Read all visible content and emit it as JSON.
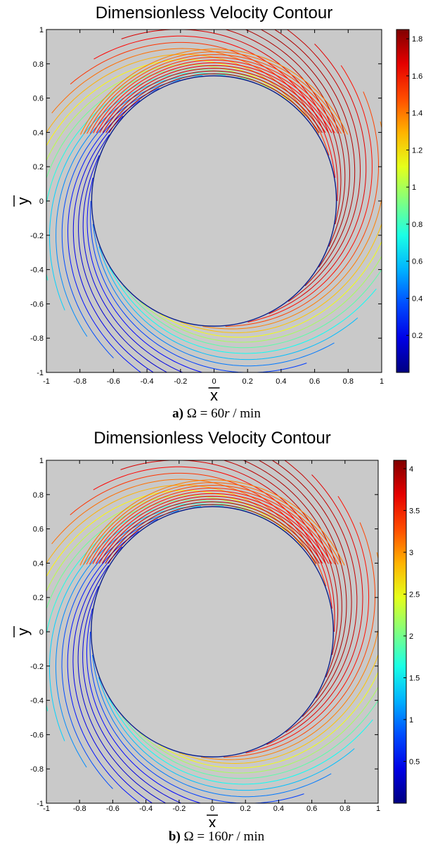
{
  "chart_data": [
    {
      "type": "contour",
      "title": "Dimensionless Velocity Contour",
      "xlabel": "x",
      "ylabel": "y",
      "xlim": [
        -1,
        1
      ],
      "ylim": [
        -1,
        1
      ],
      "xticks": [
        "-1",
        "-0.8",
        "-0.6",
        "-0.4",
        "-0.2",
        "0",
        "0.2",
        "0.4",
        "0.6",
        "0.8",
        "1"
      ],
      "yticks": [
        "-1",
        "-0.8",
        "-0.6",
        "-0.4",
        "-0.2",
        "0",
        "0.2",
        "0.4",
        "0.6",
        "0.8",
        "1"
      ],
      "colorbar": {
        "range": [
          0,
          1.85
        ],
        "ticks": [
          "0.2",
          "0.4",
          "0.6",
          "0.8",
          "1",
          "1.2",
          "1.4",
          "1.6",
          "1.8"
        ]
      },
      "cylinder_radius": 0.73,
      "max_value": 1.85,
      "caption": {
        "letter": "a)",
        "equation": "Ω = 60",
        "var": "r",
        "unit": " / min"
      }
    },
    {
      "type": "contour",
      "title": "Dimensionless Velocity Contour",
      "xlabel": "x",
      "ylabel": "y",
      "xlim": [
        -1,
        1
      ],
      "ylim": [
        -1,
        1
      ],
      "xticks": [
        "-1",
        "-0.8",
        "-0.6",
        "-0.4",
        "-0.2",
        "0",
        "0.2",
        "0.4",
        "0.6",
        "0.8",
        "1"
      ],
      "yticks": [
        "-1",
        "-0.8",
        "-0.6",
        "-0.4",
        "-0.2",
        "0",
        "0.2",
        "0.4",
        "0.6",
        "0.8",
        "1"
      ],
      "colorbar": {
        "range": [
          0,
          4.1
        ],
        "ticks": [
          "0.5",
          "1",
          "1.5",
          "2",
          "2.5",
          "3",
          "3.5",
          "4"
        ]
      },
      "cylinder_radius": 0.73,
      "max_value": 4.1,
      "caption": {
        "letter": "b)",
        "equation": "Ω = 160",
        "var": "r",
        "unit": " / min"
      }
    }
  ]
}
